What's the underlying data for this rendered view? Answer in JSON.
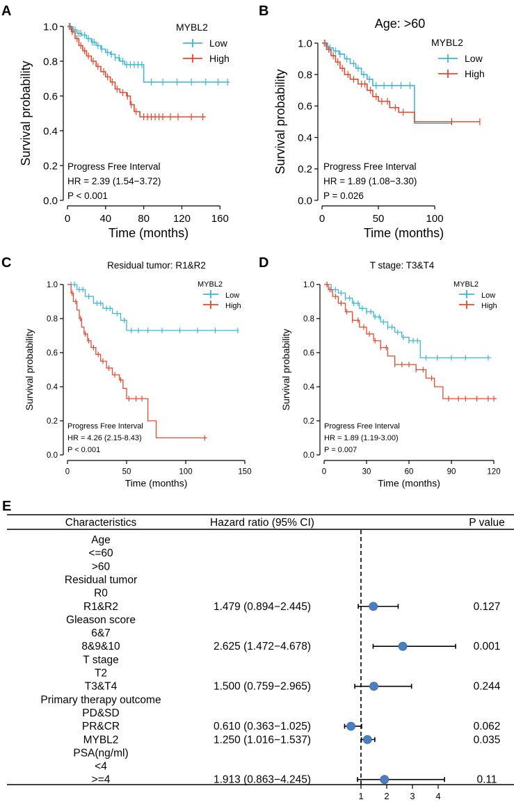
{
  "colors": {
    "low": "#3fb6d2",
    "high": "#e2492f",
    "dot": "#4c7fbe",
    "axis": "#000000"
  },
  "chart_data": [
    {
      "panel": "A",
      "type": "line",
      "title": "",
      "xlabel": "Time (months)",
      "ylabel": "Survival probability",
      "xlim": [
        0,
        170
      ],
      "ylim": [
        0,
        1
      ],
      "xticks": [
        "0",
        "40",
        "80",
        "120",
        "160"
      ],
      "xtick_values": [
        0,
        40,
        80,
        120,
        160
      ],
      "yticks": [
        "0.0",
        "0.2",
        "0.4",
        "0.6",
        "0.8",
        "1.0"
      ],
      "ytick_values": [
        0,
        0.2,
        0.4,
        0.6,
        0.8,
        1.0
      ],
      "legend_title": "MYBL2",
      "series": [
        {
          "name": "Low",
          "color_key": "low",
          "steps": [
            [
              0,
              1
            ],
            [
              5,
              0.98
            ],
            [
              10,
              0.96
            ],
            [
              15,
              0.95
            ],
            [
              20,
              0.93
            ],
            [
              25,
              0.91
            ],
            [
              30,
              0.89
            ],
            [
              35,
              0.87
            ],
            [
              40,
              0.85
            ],
            [
              45,
              0.84
            ],
            [
              50,
              0.82
            ],
            [
              55,
              0.8
            ],
            [
              60,
              0.78
            ],
            [
              80,
              0.68
            ],
            [
              170,
              0.68
            ]
          ],
          "censor": [
            3,
            6,
            8,
            12,
            14,
            18,
            22,
            26,
            28,
            32,
            36,
            42,
            46,
            50,
            54,
            58,
            62,
            66,
            70,
            74,
            78,
            88,
            100,
            115,
            130,
            145,
            158,
            168
          ]
        },
        {
          "name": "High",
          "color_key": "high",
          "steps": [
            [
              0,
              1
            ],
            [
              4,
              0.97
            ],
            [
              8,
              0.93
            ],
            [
              12,
              0.89
            ],
            [
              16,
              0.86
            ],
            [
              20,
              0.83
            ],
            [
              25,
              0.8
            ],
            [
              30,
              0.77
            ],
            [
              35,
              0.74
            ],
            [
              40,
              0.71
            ],
            [
              45,
              0.68
            ],
            [
              50,
              0.64
            ],
            [
              55,
              0.62
            ],
            [
              62,
              0.6
            ],
            [
              66,
              0.55
            ],
            [
              70,
              0.51
            ],
            [
              76,
              0.48
            ],
            [
              145,
              0.48
            ]
          ],
          "censor": [
            2,
            5,
            10,
            14,
            18,
            22,
            27,
            32,
            38,
            42,
            47,
            52,
            58,
            63,
            67,
            72,
            80,
            84,
            88,
            92,
            96,
            100,
            108,
            116,
            130,
            142
          ]
        }
      ],
      "annotations": [
        "Progress Free Interval",
        "HR = 2.39 (1.54−3.72)",
        "P < 0.001"
      ]
    },
    {
      "panel": "B",
      "type": "line",
      "title": "Age: >60",
      "xlabel": "Time (months)",
      "ylabel": "Survival probability",
      "xlim": [
        0,
        145
      ],
      "ylim": [
        0,
        1
      ],
      "xticks": [
        "0",
        "50",
        "100"
      ],
      "xtick_values": [
        0,
        50,
        100
      ],
      "yticks": [
        "0.0",
        "0.2",
        "0.4",
        "0.6",
        "0.8",
        "1.0"
      ],
      "ytick_values": [
        0,
        0.2,
        0.4,
        0.6,
        0.8,
        1.0
      ],
      "legend_title": "MYBL2",
      "series": [
        {
          "name": "Low",
          "color_key": "low",
          "steps": [
            [
              0,
              1
            ],
            [
              5,
              0.97
            ],
            [
              10,
              0.95
            ],
            [
              15,
              0.93
            ],
            [
              20,
              0.9
            ],
            [
              25,
              0.87
            ],
            [
              30,
              0.84
            ],
            [
              35,
              0.8
            ],
            [
              40,
              0.77
            ],
            [
              45,
              0.73
            ],
            [
              82,
              0.49
            ],
            [
              115,
              0.5
            ]
          ],
          "censor": [
            3,
            7,
            12,
            16,
            22,
            28,
            32,
            37,
            42,
            48,
            55,
            62,
            70,
            78,
            115
          ]
        },
        {
          "name": "High",
          "color_key": "high",
          "steps": [
            [
              0,
              1
            ],
            [
              4,
              0.96
            ],
            [
              8,
              0.92
            ],
            [
              12,
              0.88
            ],
            [
              16,
              0.84
            ],
            [
              20,
              0.8
            ],
            [
              25,
              0.77
            ],
            [
              32,
              0.74
            ],
            [
              40,
              0.7
            ],
            [
              45,
              0.66
            ],
            [
              50,
              0.63
            ],
            [
              60,
              0.59
            ],
            [
              68,
              0.56
            ],
            [
              82,
              0.5
            ],
            [
              140,
              0.5
            ]
          ],
          "censor": [
            2,
            6,
            10,
            14,
            18,
            23,
            28,
            35,
            38,
            43,
            48,
            53,
            58,
            65,
            72,
            115,
            140
          ]
        }
      ],
      "annotations": [
        "Progress Free Interval",
        "HR = 1.89 (1.08−3.30)",
        "P = 0.026"
      ]
    },
    {
      "panel": "C",
      "type": "line",
      "title": "Residual tumor: R1&R2",
      "xlabel": "Time (months)",
      "ylabel": "Survival probability",
      "xlim": [
        0,
        150
      ],
      "ylim": [
        0,
        1
      ],
      "xticks": [
        "0",
        "50",
        "100",
        "150"
      ],
      "xtick_values": [
        0,
        50,
        100,
        150
      ],
      "yticks": [
        "0.0",
        "0.2",
        "0.4",
        "0.6",
        "0.8",
        "1.0"
      ],
      "ytick_values": [
        0,
        0.2,
        0.4,
        0.6,
        0.8,
        1.0
      ],
      "legend_title": "MYBL2",
      "series": [
        {
          "name": "Low",
          "color_key": "low",
          "steps": [
            [
              0,
              1
            ],
            [
              8,
              0.97
            ],
            [
              15,
              0.93
            ],
            [
              22,
              0.89
            ],
            [
              30,
              0.86
            ],
            [
              38,
              0.83
            ],
            [
              45,
              0.79
            ],
            [
              50,
              0.73
            ],
            [
              145,
              0.73
            ]
          ],
          "censor": [
            3,
            6,
            10,
            13,
            18,
            25,
            28,
            33,
            36,
            42,
            48,
            54,
            60,
            68,
            80,
            95,
            110,
            125,
            144
          ]
        },
        {
          "name": "High",
          "color_key": "high",
          "steps": [
            [
              0,
              1
            ],
            [
              3,
              0.95
            ],
            [
              5,
              0.9
            ],
            [
              8,
              0.85
            ],
            [
              10,
              0.8
            ],
            [
              12,
              0.75
            ],
            [
              14,
              0.71
            ],
            [
              17,
              0.67
            ],
            [
              20,
              0.63
            ],
            [
              24,
              0.59
            ],
            [
              28,
              0.55
            ],
            [
              33,
              0.51
            ],
            [
              38,
              0.47
            ],
            [
              44,
              0.44
            ],
            [
              47,
              0.39
            ],
            [
              50,
              0.33
            ],
            [
              68,
              0.2
            ],
            [
              75,
              0.1
            ],
            [
              118,
              0.1
            ]
          ],
          "censor": [
            4,
            7,
            11,
            15,
            18,
            22,
            26,
            30,
            35,
            40,
            45,
            52,
            58,
            63,
            116
          ]
        }
      ],
      "annotations": [
        "Progress Free Interval",
        "HR = 4.26 (2.15-8.43)",
        "P < 0.001"
      ]
    },
    {
      "panel": "D",
      "type": "line",
      "title": "T stage: T3&T4",
      "xlabel": "Time (months)",
      "ylabel": "Survival probability",
      "xlim": [
        0,
        120
      ],
      "ylim": [
        0,
        1
      ],
      "xticks": [
        "0",
        "30",
        "60",
        "90",
        "120"
      ],
      "xtick_values": [
        0,
        30,
        60,
        90,
        120
      ],
      "yticks": [
        "0.0",
        "0.2",
        "0.4",
        "0.6",
        "0.8",
        "1.0"
      ],
      "ytick_values": [
        0,
        0.2,
        0.4,
        0.6,
        0.8,
        1.0
      ],
      "legend_title": "MYBL2",
      "series": [
        {
          "name": "Low",
          "color_key": "low",
          "steps": [
            [
              0,
              1
            ],
            [
              5,
              0.97
            ],
            [
              10,
              0.95
            ],
            [
              15,
              0.92
            ],
            [
              20,
              0.89
            ],
            [
              25,
              0.86
            ],
            [
              30,
              0.84
            ],
            [
              35,
              0.81
            ],
            [
              40,
              0.78
            ],
            [
              45,
              0.75
            ],
            [
              50,
              0.72
            ],
            [
              55,
              0.69
            ],
            [
              60,
              0.67
            ],
            [
              68,
              0.57
            ],
            [
              118,
              0.57
            ]
          ],
          "censor": [
            2,
            5,
            8,
            12,
            15,
            18,
            21,
            24,
            27,
            30,
            33,
            36,
            39,
            42,
            45,
            48,
            52,
            56,
            60,
            63,
            66,
            72,
            80,
            90,
            100,
            116
          ]
        },
        {
          "name": "High",
          "color_key": "high",
          "steps": [
            [
              0,
              1
            ],
            [
              3,
              0.97
            ],
            [
              6,
              0.93
            ],
            [
              10,
              0.89
            ],
            [
              15,
              0.84
            ],
            [
              20,
              0.79
            ],
            [
              25,
              0.75
            ],
            [
              30,
              0.71
            ],
            [
              35,
              0.67
            ],
            [
              40,
              0.63
            ],
            [
              45,
              0.58
            ],
            [
              50,
              0.53
            ],
            [
              65,
              0.5
            ],
            [
              72,
              0.45
            ],
            [
              78,
              0.4
            ],
            [
              84,
              0.33
            ],
            [
              122,
              0.33
            ]
          ],
          "censor": [
            2,
            4,
            8,
            12,
            16,
            20,
            24,
            28,
            32,
            36,
            40,
            44,
            50,
            55,
            60,
            65,
            70,
            76,
            88,
            95,
            100,
            108,
            116,
            120
          ]
        }
      ],
      "annotations": [
        "Progress Free Interval",
        "HR = 1.89 (1.19-3.00)",
        "P = 0.007"
      ]
    },
    {
      "panel": "E",
      "type": "forest",
      "headers": [
        "Characteristics",
        "Hazard ratio (95% CI)",
        "P value"
      ],
      "xticks": [
        "1",
        "2",
        "3",
        "4"
      ],
      "xtick_values": [
        1,
        2,
        3,
        4
      ],
      "reference": 1,
      "rows": [
        {
          "label": "Age"
        },
        {
          "label": "<=60"
        },
        {
          "label": ">60"
        },
        {
          "label": "Residual tumor"
        },
        {
          "label": "R0"
        },
        {
          "label": "R1&R2",
          "hr_text": "1.479 (0.894−2.445)",
          "p": "0.127",
          "hr": 1.479,
          "lo": 0.894,
          "hi": 2.445
        },
        {
          "label": "Gleason score"
        },
        {
          "label": "6&7"
        },
        {
          "label": "8&9&10",
          "hr_text": "2.625 (1.472−4.678)",
          "p": "0.001",
          "hr": 2.625,
          "lo": 1.472,
          "hi": 4.678
        },
        {
          "label": "T stage"
        },
        {
          "label": "T2"
        },
        {
          "label": "T3&T4",
          "hr_text": "1.500 (0.759−2.965)",
          "p": "0.244",
          "hr": 1.5,
          "lo": 0.759,
          "hi": 2.965
        },
        {
          "label": "Primary therapy outcome"
        },
        {
          "label": "PD&SD"
        },
        {
          "label": "PR&CR",
          "hr_text": "0.610 (0.363−1.025)",
          "p": "0.062",
          "hr": 0.61,
          "lo": 0.363,
          "hi": 1.025
        },
        {
          "label": "MYBL2",
          "hr_text": "1.250 (1.016−1.537)",
          "p": "0.035",
          "hr": 1.25,
          "lo": 1.016,
          "hi": 1.537
        },
        {
          "label": "PSA(ng/ml)"
        },
        {
          "label": "<4"
        },
        {
          "label": ">=4",
          "hr_text": "1.913 (0.863−4.245)",
          "p": "0.11",
          "hr": 1.913,
          "lo": 0.863,
          "hi": 4.245
        }
      ]
    }
  ]
}
